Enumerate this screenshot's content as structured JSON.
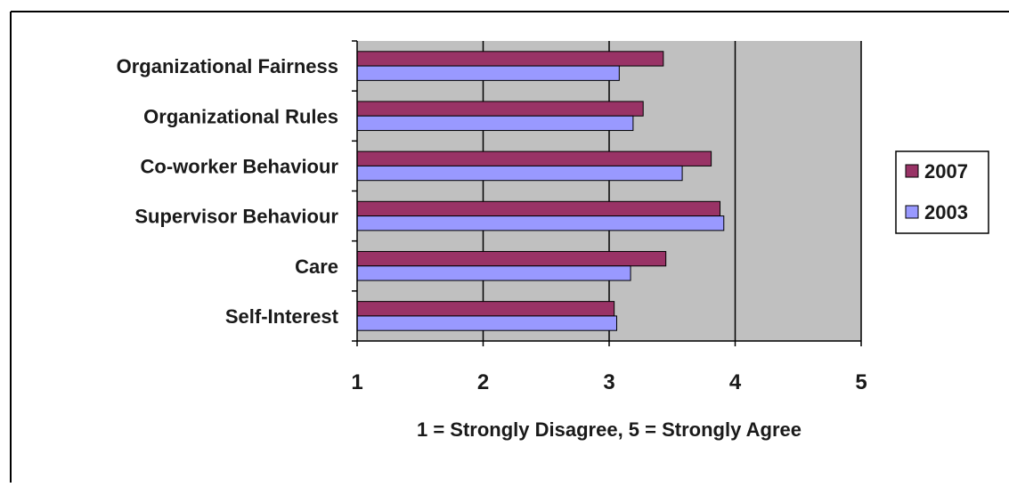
{
  "chart_data": {
    "type": "bar",
    "orientation": "horizontal",
    "categories": [
      "Organizational Fairness",
      "Organizational Rules",
      "Co-worker Behaviour",
      "Supervisor Behaviour",
      "Care",
      "Self-Interest"
    ],
    "series": [
      {
        "name": "2007",
        "color": "#993366",
        "values": [
          3.43,
          3.27,
          3.81,
          3.88,
          3.45,
          3.04
        ]
      },
      {
        "name": "2003",
        "color": "#9999ff",
        "values": [
          3.08,
          3.19,
          3.58,
          3.91,
          3.17,
          3.06
        ]
      }
    ],
    "xlim": [
      1,
      5
    ],
    "xticks": [
      "1",
      "2",
      "3",
      "4",
      "5"
    ],
    "xlabel": "1 = Strongly Disagree, 5 = Strongly Agree",
    "title": "",
    "grid": true,
    "plot_background": "#c0c0c0",
    "legend_position": "right"
  }
}
